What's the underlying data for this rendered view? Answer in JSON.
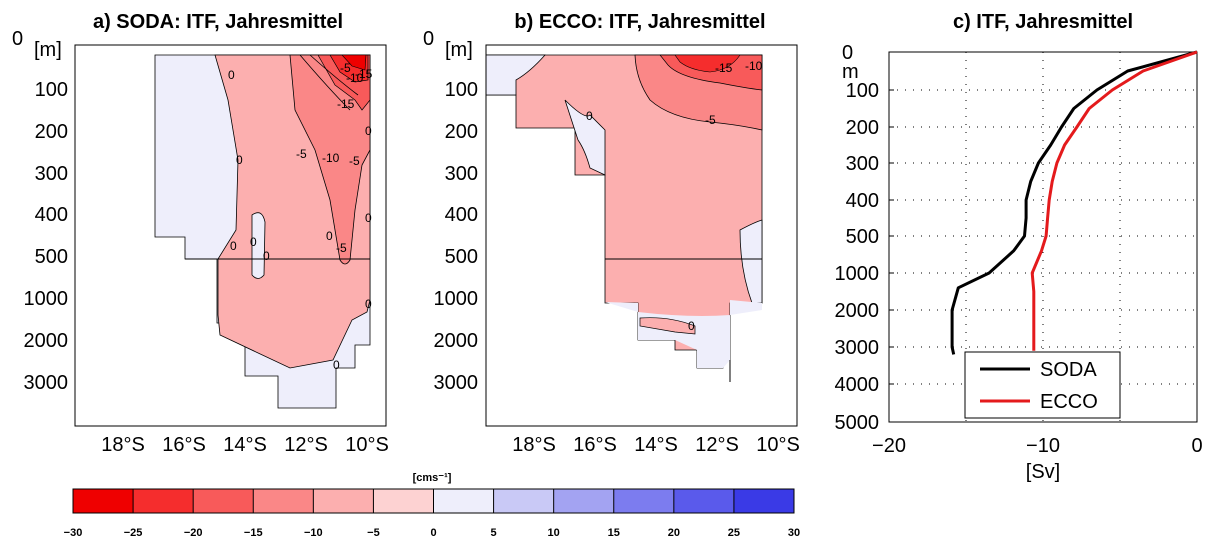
{
  "chart_data": [
    {
      "id": "soda",
      "type": "heatmap",
      "title": "a) SODA: ITF, Jahresmittel",
      "ylabel": "[m]",
      "y_ticks": [
        "0",
        "100",
        "200",
        "300",
        "400",
        "500",
        "1000",
        "2000",
        "3000"
      ],
      "x_ticks": [
        "18°S",
        "16°S",
        "14°S",
        "12°S",
        "10°S"
      ],
      "contour_labels": [
        "0",
        "0",
        "0",
        "0",
        "0",
        "0",
        "0",
        "0",
        "0",
        "0",
        "-5",
        "-5",
        "-5",
        "-10",
        "-15",
        "-5",
        "-10",
        "-15"
      ],
      "note": "upper part 0-500 m linear, lower part 500-3600 m compressed"
    },
    {
      "id": "ecco",
      "type": "heatmap",
      "title": "b) ECCO: ITF, Jahresmittel",
      "ylabel": "[m]",
      "y_ticks": [
        "0",
        "100",
        "200",
        "300",
        "400",
        "500",
        "1000",
        "2000",
        "3000"
      ],
      "x_ticks": [
        "18°S",
        "16°S",
        "14°S",
        "12°S",
        "10°S"
      ],
      "contour_labels": [
        "-15",
        "-10",
        "-5",
        "0",
        "0"
      ]
    },
    {
      "id": "itf",
      "type": "line",
      "title": "c) ITF, Jahresmittel",
      "ylabel": "m",
      "xlabel": "[Sv]",
      "y_ticks": [
        "0",
        "100",
        "200",
        "300",
        "400",
        "500",
        "1000",
        "2000",
        "3000",
        "4000",
        "5000"
      ],
      "x_ticks": [
        "−20",
        "−10",
        "0"
      ],
      "xlim": [
        -20,
        0
      ],
      "grid": true,
      "legend_position": "bottom-right",
      "series": [
        {
          "name": "SODA",
          "color": "#000000",
          "points": [
            [
              0,
              0
            ],
            [
              -4.5,
              50
            ],
            [
              -6.5,
              100
            ],
            [
              -8,
              150
            ],
            [
              -8.8,
              200
            ],
            [
              -9.5,
              250
            ],
            [
              -10.3,
              300
            ],
            [
              -10.8,
              350
            ],
            [
              -11.1,
              400
            ],
            [
              -11.1,
              450
            ],
            [
              -11.2,
              500
            ],
            [
              -11.9,
              700
            ],
            [
              -13.5,
              1000
            ],
            [
              -15.5,
              1400
            ],
            [
              -15.9,
              2000
            ],
            [
              -15.9,
              3000
            ],
            [
              -15.8,
              3200
            ]
          ]
        },
        {
          "name": "ECCO",
          "color": "#e41a1c",
          "points": [
            [
              0,
              0
            ],
            [
              -3.5,
              50
            ],
            [
              -5.5,
              100
            ],
            [
              -7,
              150
            ],
            [
              -7.8,
              200
            ],
            [
              -8.6,
              250
            ],
            [
              -9.1,
              300
            ],
            [
              -9.4,
              350
            ],
            [
              -9.6,
              400
            ],
            [
              -9.7,
              450
            ],
            [
              -9.8,
              500
            ],
            [
              -10.1,
              700
            ],
            [
              -10.7,
              1000
            ],
            [
              -10.6,
              1500
            ],
            [
              -10.6,
              3100
            ]
          ]
        }
      ]
    }
  ],
  "colorbar": {
    "unit_label": "[cms⁻¹]",
    "ticks": [
      "−30",
      "−25",
      "−20",
      "−15",
      "−10",
      "−5",
      "0",
      "5",
      "10",
      "15",
      "20",
      "25",
      "30"
    ],
    "colors": [
      "#ef0000",
      "#f52d2d",
      "#f85a5a",
      "#fa8787",
      "#fcafaf",
      "#fdd2d2",
      "#eeeefb",
      "#c9c9f6",
      "#a3a3f2",
      "#7c7cef",
      "#5a5aeb",
      "#3a3ae6"
    ]
  }
}
